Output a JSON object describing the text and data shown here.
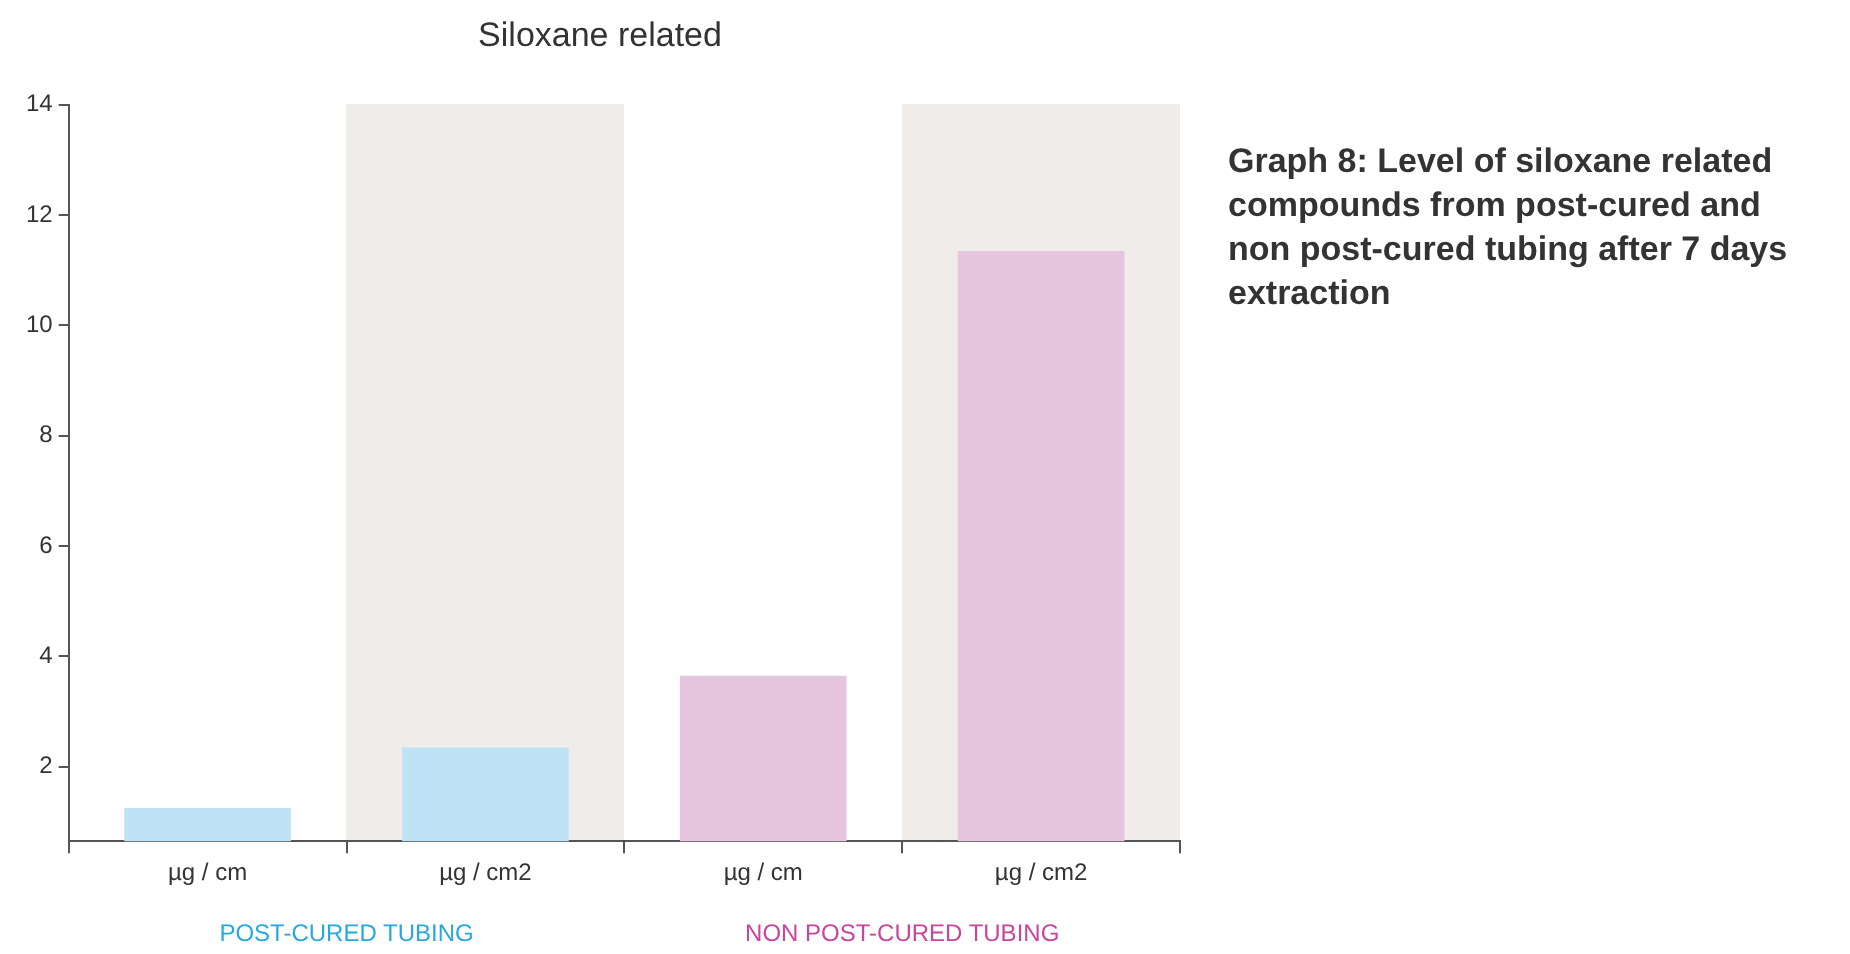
{
  "chart_data": {
    "type": "bar",
    "title": "Siloxane related",
    "categories": [
      "µg / cm",
      "µg / cm2",
      "µg / cm",
      "µg / cm2"
    ],
    "values": [
      1.25,
      2.35,
      3.65,
      11.35
    ],
    "colors": [
      "#bfe3f5",
      "#bfe3f5",
      "#e6c6df",
      "#e6c6df"
    ],
    "ylim": [
      0.65,
      14
    ],
    "yticks": [
      2,
      4,
      6,
      8,
      10,
      12,
      14
    ],
    "grid": false,
    "legend": false,
    "annotations": [
      "POST-CURED TUBING",
      "NON POST-CURED TUBING",
      "Graph 8: Level of siloxane related compounds from post-cured and non post-cured tubing after 7 days extraction"
    ]
  }
}
